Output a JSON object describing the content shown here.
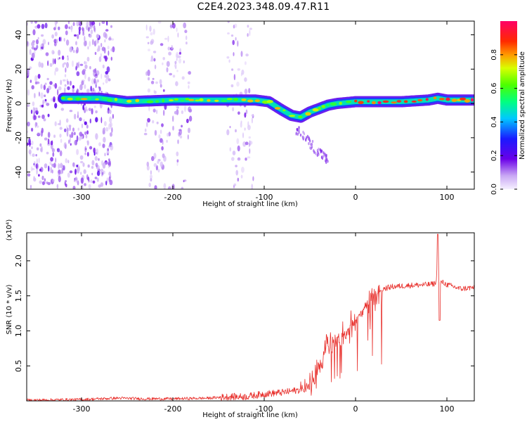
{
  "title": "C2E4.2023.348.09.47.R11",
  "colorbar": {
    "label": "Normalized spectral amplitude",
    "ticks": [
      "0.0",
      "0.2",
      "0.4",
      "0.6",
      "0.8"
    ],
    "tick_values": [
      0.0,
      0.2,
      0.4,
      0.6,
      0.8
    ],
    "range": [
      0,
      1
    ]
  },
  "chart_data": [
    {
      "type": "heatmap",
      "title": "",
      "xlabel": "Height of straight line (km)",
      "ylabel": "Frequency (Hz)",
      "xlim": [
        -360,
        130
      ],
      "ylim": [
        -50,
        48
      ],
      "xticks": [
        -300,
        -200,
        -100,
        0,
        100
      ],
      "xtick_labels": [
        "-300",
        "-200",
        "-100",
        "0",
        "100"
      ],
      "yticks": [
        -40,
        -20,
        0,
        20,
        40
      ],
      "ytick_labels": [
        "-40",
        "-20",
        "0",
        "20",
        "40"
      ],
      "ridge": {
        "description": "dominant frequency track",
        "x": [
          -320,
          -280,
          -250,
          -200,
          -150,
          -110,
          -95,
          -80,
          -70,
          -60,
          -50,
          -40,
          -30,
          -20,
          0,
          50,
          80,
          90,
          100,
          130
        ],
        "y": [
          3,
          3,
          1,
          2,
          2,
          2,
          1,
          -4,
          -7,
          -8,
          -5,
          -3,
          -1,
          0,
          1,
          1,
          2,
          3,
          2,
          2
        ]
      },
      "noise_regions_x": [
        [
          -360,
          -265
        ],
        [
          -230,
          -180
        ],
        [
          -140,
          -112
        ]
      ]
    },
    {
      "type": "line",
      "title": "",
      "xlabel": "Height of straight line (km)",
      "ylabel": "SNR (10 * v/v)",
      "y_scale_note": "(x10⁴)",
      "xlim": [
        -360,
        130
      ],
      "ylim": [
        0,
        2.4
      ],
      "xticks": [
        -300,
        -200,
        -100,
        0,
        100
      ],
      "xtick_labels": [
        "-300",
        "-200",
        "-100",
        "0",
        "100"
      ],
      "yticks": [
        0.5,
        1.0,
        1.5,
        2.0
      ],
      "ytick_labels": [
        "0.5",
        "1.0",
        "1.5",
        "2.0"
      ],
      "color": "#e8312d",
      "series": [
        {
          "x": [
            -360,
            -300,
            -260,
            -230,
            -200,
            -160,
            -140,
            -120,
            -100,
            -80,
            -60,
            -50,
            -45,
            -40,
            -35,
            -30,
            -20,
            -10,
            0,
            10,
            20,
            30,
            40,
            60,
            80,
            88,
            90,
            92,
            94,
            100,
            115,
            130
          ],
          "y": [
            0.01,
            0.02,
            0.04,
            0.03,
            0.03,
            0.04,
            0.06,
            0.06,
            0.1,
            0.12,
            0.16,
            0.22,
            0.3,
            0.45,
            0.62,
            0.78,
            0.9,
            1.0,
            1.15,
            1.35,
            1.5,
            1.6,
            1.63,
            1.65,
            1.66,
            1.68,
            2.0,
            1.65,
            1.7,
            1.66,
            1.6,
            1.62
          ]
        }
      ]
    }
  ]
}
